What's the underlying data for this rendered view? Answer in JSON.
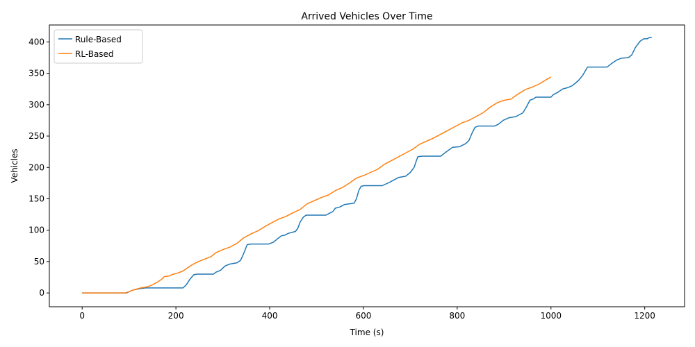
{
  "chart_data": {
    "type": "line",
    "title": "Arrived Vehicles Over Time",
    "xlabel": "Time (s)",
    "ylabel": "Vehicles",
    "xlim": [
      -70,
      1285
    ],
    "ylim": [
      -22,
      427
    ],
    "xticks": [
      0,
      200,
      400,
      600,
      800,
      1000,
      1200
    ],
    "yticks": [
      0,
      50,
      100,
      150,
      200,
      250,
      300,
      350,
      400
    ],
    "grid": false,
    "legend_position": "upper-left",
    "series": [
      {
        "name": "Rule-Based",
        "color": "#1f77b4",
        "points": [
          [
            0,
            0
          ],
          [
            95,
            0
          ],
          [
            100,
            2
          ],
          [
            110,
            5
          ],
          [
            125,
            7
          ],
          [
            135,
            8
          ],
          [
            215,
            8
          ],
          [
            222,
            13
          ],
          [
            230,
            22
          ],
          [
            238,
            29
          ],
          [
            245,
            30
          ],
          [
            280,
            30
          ],
          [
            285,
            33
          ],
          [
            295,
            36
          ],
          [
            305,
            43
          ],
          [
            315,
            46
          ],
          [
            330,
            48
          ],
          [
            338,
            52
          ],
          [
            344,
            62
          ],
          [
            352,
            77
          ],
          [
            360,
            78
          ],
          [
            398,
            78
          ],
          [
            408,
            81
          ],
          [
            418,
            87
          ],
          [
            425,
            91
          ],
          [
            432,
            92
          ],
          [
            440,
            95
          ],
          [
            455,
            98
          ],
          [
            460,
            103
          ],
          [
            465,
            113
          ],
          [
            472,
            121
          ],
          [
            478,
            124
          ],
          [
            520,
            124
          ],
          [
            525,
            126
          ],
          [
            535,
            130
          ],
          [
            540,
            135
          ],
          [
            550,
            137
          ],
          [
            560,
            141
          ],
          [
            580,
            143
          ],
          [
            585,
            150
          ],
          [
            590,
            163
          ],
          [
            595,
            170
          ],
          [
            602,
            171
          ],
          [
            640,
            171
          ],
          [
            655,
            176
          ],
          [
            665,
            180
          ],
          [
            675,
            184
          ],
          [
            690,
            186
          ],
          [
            700,
            192
          ],
          [
            708,
            200
          ],
          [
            713,
            211
          ],
          [
            716,
            217
          ],
          [
            725,
            218
          ],
          [
            765,
            218
          ],
          [
            775,
            224
          ],
          [
            790,
            232
          ],
          [
            805,
            233
          ],
          [
            818,
            238
          ],
          [
            825,
            243
          ],
          [
            832,
            255
          ],
          [
            838,
            264
          ],
          [
            845,
            266
          ],
          [
            880,
            266
          ],
          [
            888,
            269
          ],
          [
            898,
            275
          ],
          [
            910,
            279
          ],
          [
            925,
            281
          ],
          [
            940,
            287
          ],
          [
            948,
            297
          ],
          [
            955,
            307
          ],
          [
            962,
            309
          ],
          [
            968,
            312
          ],
          [
            1000,
            312
          ],
          [
            1005,
            316
          ],
          [
            1015,
            320
          ],
          [
            1025,
            325
          ],
          [
            1035,
            327
          ],
          [
            1045,
            330
          ],
          [
            1058,
            338
          ],
          [
            1068,
            347
          ],
          [
            1078,
            360
          ],
          [
            1120,
            360
          ],
          [
            1130,
            366
          ],
          [
            1140,
            371
          ],
          [
            1150,
            374
          ],
          [
            1165,
            375
          ],
          [
            1172,
            379
          ],
          [
            1180,
            391
          ],
          [
            1190,
            401
          ],
          [
            1198,
            405
          ],
          [
            1205,
            405
          ],
          [
            1210,
            407
          ],
          [
            1215,
            407
          ]
        ]
      },
      {
        "name": "RL-Based",
        "color": "#ff7f0e",
        "points": [
          [
            0,
            0
          ],
          [
            92,
            0
          ],
          [
            100,
            2
          ],
          [
            110,
            5
          ],
          [
            125,
            8
          ],
          [
            140,
            10
          ],
          [
            150,
            13
          ],
          [
            160,
            17
          ],
          [
            170,
            22
          ],
          [
            175,
            26
          ],
          [
            185,
            27
          ],
          [
            195,
            30
          ],
          [
            205,
            32
          ],
          [
            215,
            35
          ],
          [
            225,
            40
          ],
          [
            235,
            45
          ],
          [
            245,
            49
          ],
          [
            255,
            52
          ],
          [
            265,
            55
          ],
          [
            275,
            58
          ],
          [
            285,
            64
          ],
          [
            300,
            69
          ],
          [
            315,
            73
          ],
          [
            330,
            79
          ],
          [
            345,
            88
          ],
          [
            360,
            94
          ],
          [
            375,
            99
          ],
          [
            390,
            106
          ],
          [
            405,
            112
          ],
          [
            420,
            118
          ],
          [
            435,
            122
          ],
          [
            450,
            128
          ],
          [
            465,
            133
          ],
          [
            480,
            142
          ],
          [
            495,
            147
          ],
          [
            510,
            152
          ],
          [
            525,
            156
          ],
          [
            540,
            163
          ],
          [
            555,
            168
          ],
          [
            570,
            175
          ],
          [
            585,
            183
          ],
          [
            600,
            187
          ],
          [
            615,
            192
          ],
          [
            630,
            197
          ],
          [
            645,
            205
          ],
          [
            660,
            211
          ],
          [
            675,
            217
          ],
          [
            690,
            223
          ],
          [
            705,
            229
          ],
          [
            720,
            237
          ],
          [
            735,
            242
          ],
          [
            750,
            247
          ],
          [
            765,
            253
          ],
          [
            780,
            259
          ],
          [
            795,
            265
          ],
          [
            810,
            271
          ],
          [
            825,
            275
          ],
          [
            840,
            281
          ],
          [
            855,
            287
          ],
          [
            870,
            296
          ],
          [
            885,
            303
          ],
          [
            900,
            307
          ],
          [
            915,
            309
          ],
          [
            930,
            317
          ],
          [
            945,
            324
          ],
          [
            960,
            328
          ],
          [
            975,
            333
          ],
          [
            990,
            340
          ],
          [
            1000,
            344
          ]
        ]
      }
    ]
  }
}
